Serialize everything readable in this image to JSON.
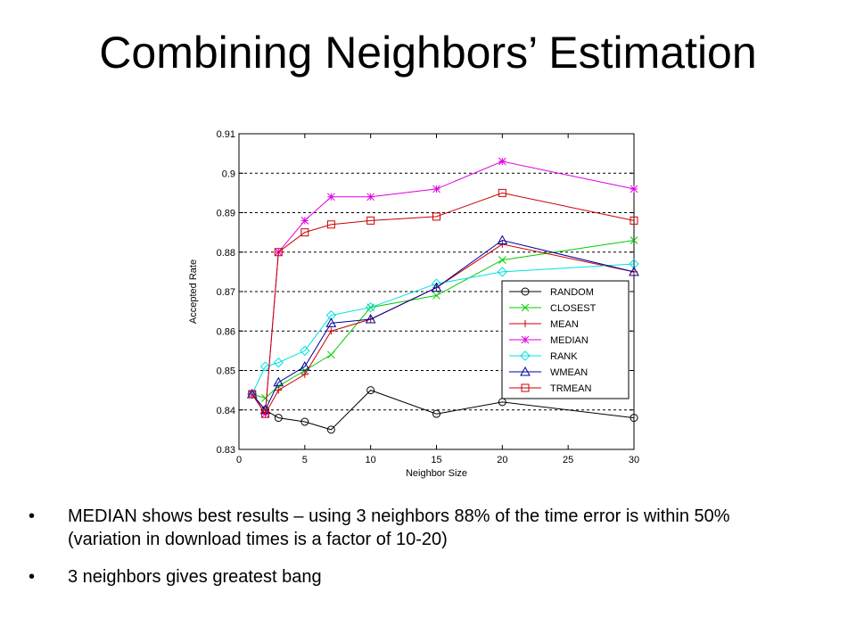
{
  "slide": {
    "title": "Combining Neighbors’ Estimation",
    "bullets": [
      "MEDIAN shows best results – using 3 neighbors  88% of the time error is within 50% (variation in download times is a factor of 10-20)",
      "3 neighbors gives greatest bang"
    ]
  },
  "chart_data": {
    "type": "line",
    "title": "",
    "xlabel": "Neighbor Size",
    "ylabel": "Accepted Rate",
    "xlim": [
      0,
      30
    ],
    "ylim": [
      0.83,
      0.91
    ],
    "xticks": [
      0,
      5,
      10,
      15,
      20,
      25,
      30
    ],
    "xtick_labels": [
      "0",
      "5",
      "10",
      "15",
      "20",
      "25",
      "30"
    ],
    "yticks": [
      0.83,
      0.84,
      0.85,
      0.86,
      0.87,
      0.88,
      0.89,
      0.9,
      0.91
    ],
    "ytick_labels": [
      "0.83",
      "0.84",
      "0.85",
      "0.86",
      "0.87",
      "0.88",
      "0.89",
      "0.9",
      "0.91"
    ],
    "grid": "horizontal-dashed",
    "legend_position": "lower-right",
    "x": [
      1,
      2,
      3,
      5,
      7,
      10,
      15,
      20,
      30
    ],
    "series": [
      {
        "name": "RANDOM",
        "color": "#000000",
        "marker": "circle",
        "values": [
          0.844,
          0.84,
          0.838,
          0.837,
          0.835,
          0.845,
          0.839,
          0.842,
          0.838
        ]
      },
      {
        "name": "CLOSEST",
        "color": "#00cc00",
        "marker": "x",
        "values": [
          0.844,
          0.843,
          0.846,
          0.85,
          0.854,
          0.866,
          0.869,
          0.878,
          0.883
        ]
      },
      {
        "name": "MEAN",
        "color": "#cc0000",
        "marker": "plus",
        "values": [
          0.844,
          0.839,
          0.845,
          0.849,
          0.86,
          0.863,
          0.871,
          0.882,
          0.875
        ]
      },
      {
        "name": "MEDIAN",
        "color": "#e000e0",
        "marker": "star",
        "values": [
          0.844,
          0.839,
          0.88,
          0.888,
          0.894,
          0.894,
          0.896,
          0.903,
          0.896
        ]
      },
      {
        "name": "RANK",
        "color": "#00e0e0",
        "marker": "diamond",
        "values": [
          0.844,
          0.851,
          0.852,
          0.855,
          0.864,
          0.866,
          0.872,
          0.875,
          0.877
        ]
      },
      {
        "name": "WMEAN",
        "color": "#000099",
        "marker": "triangle",
        "values": [
          0.844,
          0.84,
          0.847,
          0.851,
          0.862,
          0.863,
          0.871,
          0.883,
          0.875
        ]
      },
      {
        "name": "TRMEAN",
        "color": "#cc0000",
        "marker": "square",
        "values": [
          0.844,
          0.839,
          0.88,
          0.885,
          0.887,
          0.888,
          0.889,
          0.895,
          0.888
        ]
      }
    ]
  }
}
